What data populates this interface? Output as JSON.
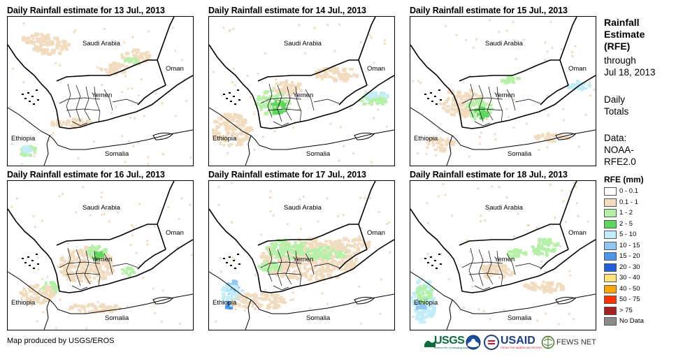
{
  "panels": [
    {
      "title": "Daily Rainfall estimate for 13 Jul., 2013"
    },
    {
      "title": "Daily Rainfall estimate for 14 Jul., 2013"
    },
    {
      "title": "Daily Rainfall estimate for 15 Jul., 2013"
    },
    {
      "title": "Daily Rainfall estimate for 16 Jul., 2013"
    },
    {
      "title": "Daily Rainfall estimate for 17 Jul., 2013"
    },
    {
      "title": "Daily Rainfall estimate for 18 Jul., 2013"
    }
  ],
  "map_labels": {
    "saudi": "Saudi Arabia",
    "oman": "Oman",
    "yemen": "Yemen",
    "ethiopia": "Ethiopia",
    "somalia": "Somalia"
  },
  "sidebar": {
    "title_lines": [
      "Rainfall",
      "Estimate",
      "(RFE)"
    ],
    "through": "through",
    "date": "Jul 18, 2013",
    "totals_lines": [
      "Daily",
      "Totals"
    ],
    "data_lines": [
      "Data:",
      "NOAA-",
      "RFE2.0"
    ]
  },
  "legend": {
    "title": "RFE (mm)",
    "items": [
      {
        "label": "0 - 0.1",
        "color": "#ffffff"
      },
      {
        "label": "0.1 - 1",
        "color": "#f2dcc0"
      },
      {
        "label": "1 - 2",
        "color": "#b4f0a8"
      },
      {
        "label": "2 - 5",
        "color": "#5cd65c"
      },
      {
        "label": "5 - 10",
        "color": "#c2ecf7"
      },
      {
        "label": "10 - 15",
        "color": "#8ec6f0"
      },
      {
        "label": "15 - 20",
        "color": "#4d94ea"
      },
      {
        "label": "20 - 30",
        "color": "#1f5fdb"
      },
      {
        "label": "30 - 40",
        "color": "#ffe27a"
      },
      {
        "label": "40 - 50",
        "color": "#ffa800"
      },
      {
        "label": "50 - 75",
        "color": "#ff3300"
      },
      {
        "label": "> 75",
        "color": "#a82020"
      },
      {
        "label": "No Data",
        "color": "#8c8c8c"
      }
    ]
  },
  "credit": "Map produced by USGS/EROS",
  "logos": {
    "usgs": "USGS",
    "usgs_tag": "science for a changing world",
    "usaid": "USAID",
    "usaid_tag": "FROM THE AMERICAN PEOPLE",
    "fewsnet": "FEWS NET"
  }
}
